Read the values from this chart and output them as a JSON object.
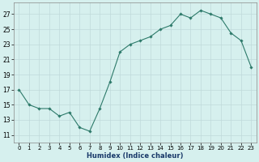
{
  "x": [
    0,
    1,
    2,
    3,
    4,
    5,
    6,
    7,
    8,
    9,
    10,
    11,
    12,
    13,
    14,
    15,
    16,
    17,
    18,
    19,
    20,
    21,
    22,
    23
  ],
  "y": [
    17,
    15,
    14.5,
    14.5,
    13.5,
    14,
    12,
    11.5,
    14.5,
    18,
    22,
    23,
    23.5,
    24,
    25,
    25.5,
    27,
    26.5,
    27.5,
    27,
    26.5,
    24.5,
    23.5,
    20
  ],
  "line_color": "#2d7a6a",
  "marker_color": "#2d7a6a",
  "bg_color": "#d6f0ee",
  "grid_color": "#c0dada",
  "xlabel": "Humidex (Indice chaleur)",
  "xlabel_color": "#1a3a6a",
  "yticks": [
    11,
    13,
    15,
    17,
    19,
    21,
    23,
    25,
    27
  ],
  "xtick_labels": [
    "0",
    "1",
    "2",
    "3",
    "4",
    "5",
    "6",
    "7",
    "8",
    "9",
    "10",
    "11",
    "12",
    "13",
    "14",
    "15",
    "16",
    "17",
    "18",
    "19",
    "20",
    "21",
    "22",
    "23"
  ],
  "ylim": [
    10.0,
    28.5
  ],
  "xlim": [
    -0.5,
    23.5
  ]
}
